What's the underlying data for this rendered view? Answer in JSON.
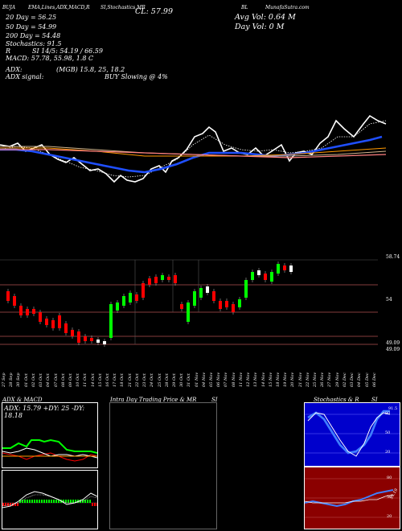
{
  "header": {
    "symbol": "BUJA",
    "studies": "EMA,Lines,ADX,MACD,R",
    "stoch": "SI,Stochastics,MR",
    "cl": "CL: 57.99",
    "bl": "BL",
    "brand": "MunafaSutra.com",
    "avg_vol": "Avg Vol: 0.64  M",
    "day_vol": "Day Vol: 0   M"
  },
  "indicators": {
    "d20": "20 Day = 56.25",
    "d50": "50 Day = 54.99",
    "d200": "200 Day = 54.48",
    "stochastics": "Stochastics: 91.5",
    "r_label": "R",
    "si": "SI 14/5: 54.19 / 66.59",
    "macd": "MACD: 57.78, 55.98, 1.8  C"
  },
  "adx": {
    "line1_left": "ADX:",
    "line1_mid": "(MGB) 15.8,  25, 18.2",
    "line2_left": "ADX  signal:",
    "line2_mid": "BUY Slowing @ 4%"
  },
  "price_axis": {
    "top": "58.74",
    "mid": "54",
    "low1": "49.09",
    "low2": "49.09"
  },
  "dates": [
    "27 Sep",
    "28 Sep",
    "30 Sep",
    "01 Oct",
    "02 Oct",
    "03 Oct",
    "04 Oct",
    "07 Oct",
    "08 Oct",
    "09 Oct",
    "10 Oct",
    "11 Oct",
    "14 Oct",
    "15 Oct",
    "16 Oct",
    "17 Oct",
    "18 Oct",
    "21 Oct",
    "22 Oct",
    "23 Oct",
    "24 Oct",
    "25 Oct",
    "28 Oct",
    "29 Oct",
    "30 Oct",
    "31 Oct",
    "01 Nov",
    "04 Nov",
    "05 Nov",
    "06 Nov",
    "07 Nov",
    "08 Nov",
    "11 Nov",
    "12 Nov",
    "13 Nov",
    "14 Nov",
    "15 Nov",
    "18 Nov",
    "19 Nov",
    "20 Nov",
    "21 Nov",
    "22 Nov",
    "25 Nov",
    "26 Nov",
    "27 Nov",
    "29 Nov",
    "02 Dec",
    "03 Dec",
    "04 Dec",
    "05 Dec",
    "06 Dec"
  ],
  "panels": {
    "adx_macd_title": "ADX  & MACD",
    "adx_box": "ADX: 15.79 +DY: 25 -DY: 18.18",
    "intraday_title": "Intra  Day Trading Price   & MR",
    "intraday_si": "SI",
    "stoch_title": "Stochastics & R",
    "stoch_si": "SI",
    "stoch_val": "91.5",
    "stoch_80": "80",
    "stoch_50": "50",
    "stoch_20": "20",
    "si_80": "80",
    "si_50": "50",
    "si_20": "20",
    "si_val": "54.19"
  },
  "colors": {
    "green": "#00ff00",
    "red": "#ff0000",
    "blue": "#1f4fff",
    "orange": "#ff9900",
    "darkred": "#8b0000",
    "stochblue": "#0000cc"
  }
}
